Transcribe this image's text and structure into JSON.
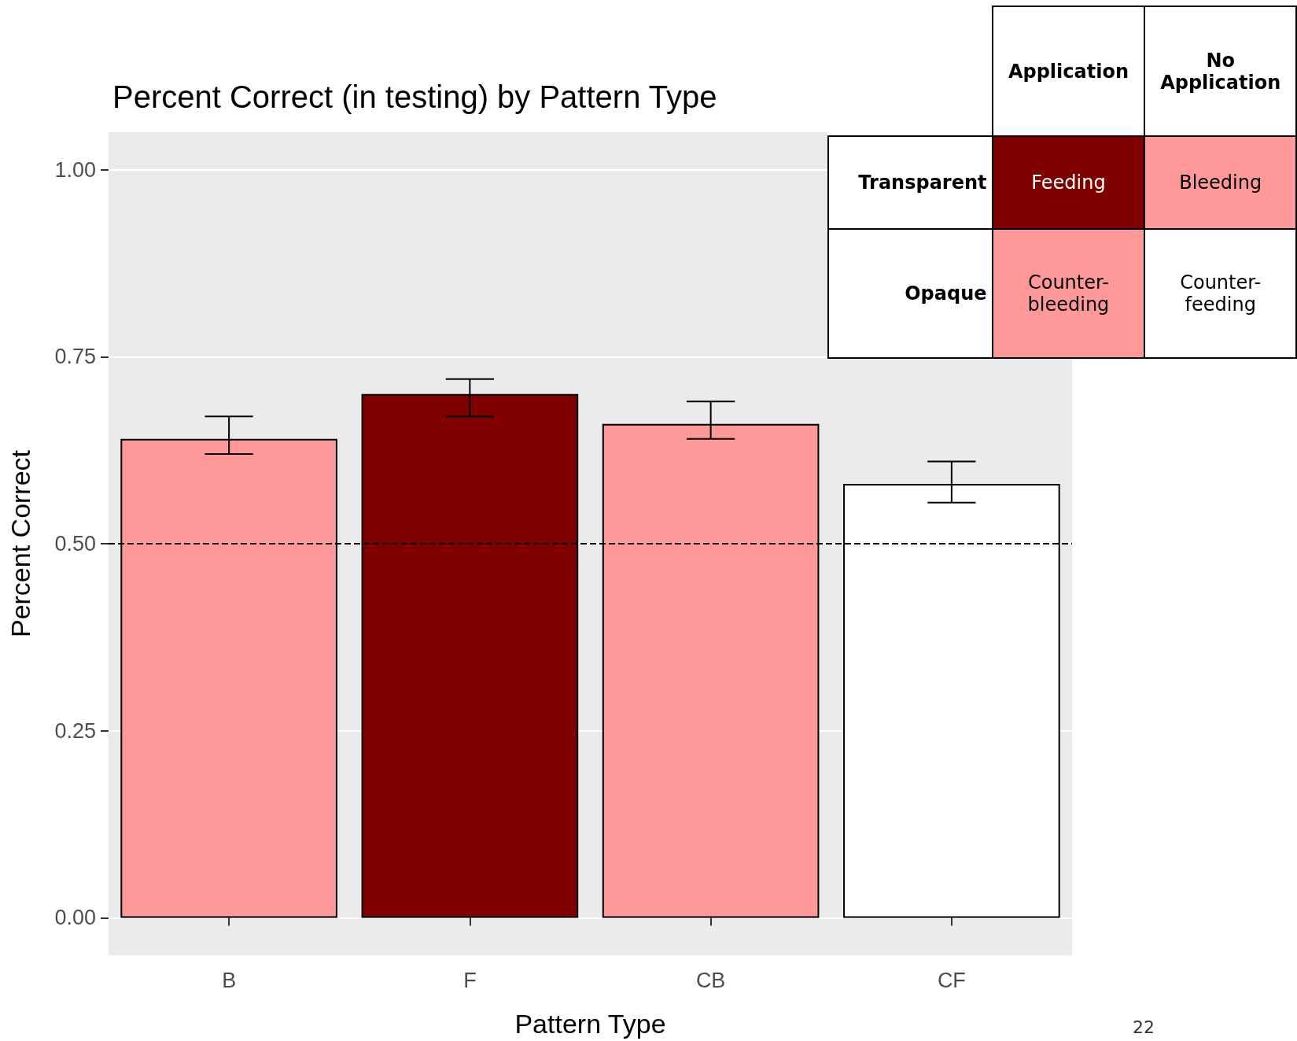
{
  "chart_data": {
    "type": "bar",
    "title": "Percent Correct (in testing) by Pattern Type",
    "xlabel": "Pattern Type",
    "ylabel": "Percent Correct",
    "categories": [
      "B",
      "F",
      "CB",
      "CF"
    ],
    "values": [
      0.64,
      0.7,
      0.66,
      0.58
    ],
    "errors": [
      [
        0.62,
        0.67
      ],
      [
        0.67,
        0.72
      ],
      [
        0.64,
        0.69
      ],
      [
        0.555,
        0.61
      ]
    ],
    "colors": [
      "#ff9999",
      "#800000",
      "#ff9999",
      "#ffffff"
    ],
    "ylim": [
      -0.05,
      1.05
    ],
    "yticks": [
      {
        "value": 0,
        "label": "0.00"
      },
      {
        "value": 0.25,
        "label": "0.25"
      },
      {
        "value": 0.5,
        "label": "0.50"
      },
      {
        "value": 0.75,
        "label": "0.75"
      },
      {
        "value": 1,
        "label": "1.00"
      }
    ],
    "grid": true,
    "ref_lines": [
      {
        "axis": "y",
        "value": 0.5,
        "color": "#000000",
        "line_style": "dashed"
      }
    ],
    "annotations": [
      "Application",
      "No Application",
      "Transparent",
      "Opaque",
      "Feeding",
      "Bleeding",
      "Counter-bleeding",
      "Counter-feeding",
      "22"
    ]
  }
}
